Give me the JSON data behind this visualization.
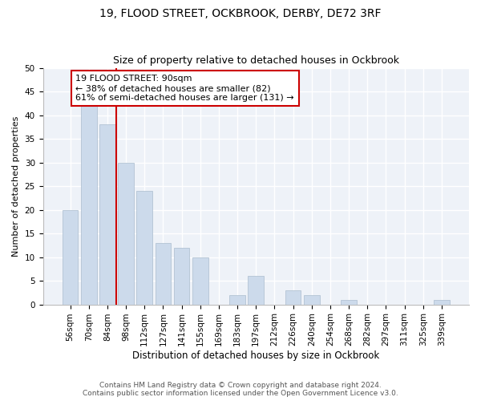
{
  "title1": "19, FLOOD STREET, OCKBROOK, DERBY, DE72 3RF",
  "title2": "Size of property relative to detached houses in Ockbrook",
  "xlabel": "Distribution of detached houses by size in Ockbrook",
  "ylabel": "Number of detached properties",
  "categories": [
    "56sqm",
    "70sqm",
    "84sqm",
    "98sqm",
    "112sqm",
    "127sqm",
    "141sqm",
    "155sqm",
    "169sqm",
    "183sqm",
    "197sqm",
    "212sqm",
    "226sqm",
    "240sqm",
    "254sqm",
    "268sqm",
    "282sqm",
    "297sqm",
    "311sqm",
    "325sqm",
    "339sqm"
  ],
  "values": [
    20,
    42,
    38,
    30,
    24,
    13,
    12,
    10,
    0,
    2,
    6,
    0,
    3,
    2,
    0,
    1,
    0,
    0,
    0,
    0,
    1
  ],
  "bar_color": "#ccdaeb",
  "bar_edge_color": "#aabcce",
  "vline_x": 2.5,
  "vline_color": "#cc0000",
  "annotation_box_text": "19 FLOOD STREET: 90sqm\n← 38% of detached houses are smaller (82)\n61% of semi-detached houses are larger (131) →",
  "annotation_box_color": "#cc0000",
  "ylim": [
    0,
    50
  ],
  "yticks": [
    0,
    5,
    10,
    15,
    20,
    25,
    30,
    35,
    40,
    45,
    50
  ],
  "footer1": "Contains HM Land Registry data © Crown copyright and database right 2024.",
  "footer2": "Contains public sector information licensed under the Open Government Licence v3.0.",
  "bg_color": "#ffffff",
  "plot_bg_color": "#eef2f8",
  "title1_fontsize": 10,
  "title2_fontsize": 9,
  "xlabel_fontsize": 8.5,
  "ylabel_fontsize": 8,
  "tick_fontsize": 7.5,
  "annotation_fontsize": 8,
  "footer_fontsize": 6.5
}
